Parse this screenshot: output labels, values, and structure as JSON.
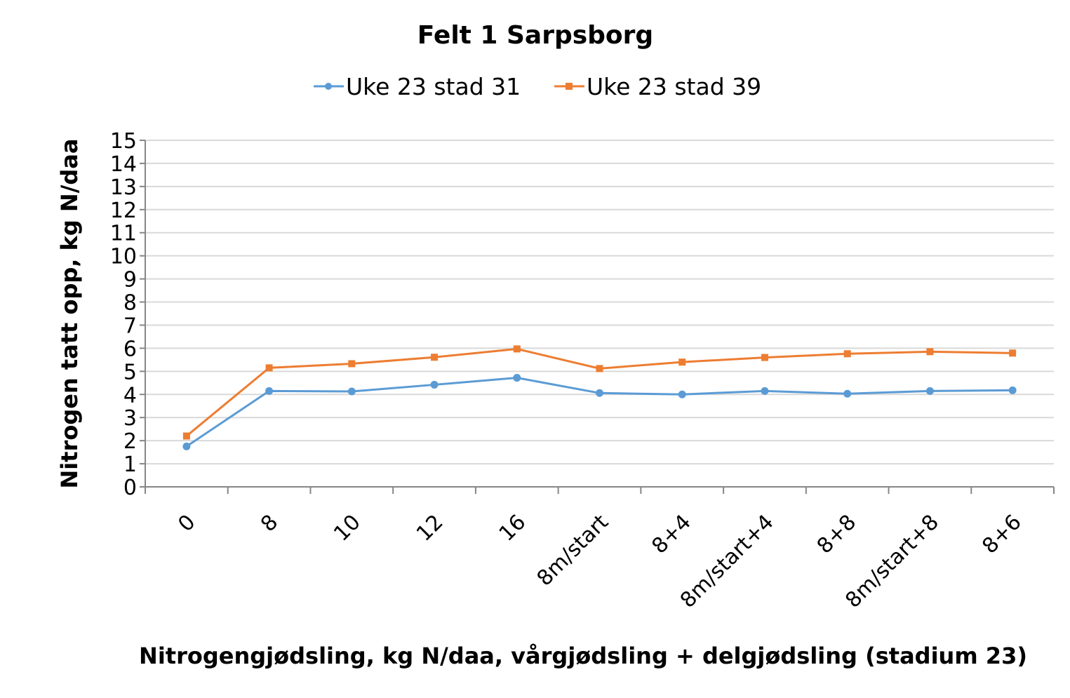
{
  "chart_data": {
    "type": "line",
    "title": "Felt 1 Sarpsborg",
    "xlabel": "Nitrogengjødsling, kg N/daa, vårgjødsling + delgjødsling (stadium 23)",
    "ylabel": "Nitrogen tatt opp, kg N/daa",
    "ylim": [
      0,
      15
    ],
    "yticks": [
      "0",
      "1",
      "2",
      "3",
      "4",
      "5",
      "6",
      "7",
      "8",
      "9",
      "10",
      "11",
      "12",
      "13",
      "14",
      "15"
    ],
    "grid": true,
    "legend_position": "top",
    "categories": [
      "0",
      "8",
      "10",
      "12",
      "16",
      "8m/start",
      "8+4",
      "8m/start+4",
      "8+8",
      "8m/start+8",
      "8+6"
    ],
    "series": [
      {
        "name": "Uke 23 stad 31",
        "color": "#5b9bd5",
        "marker": "circle",
        "values": [
          1.75,
          4.15,
          4.13,
          4.42,
          4.72,
          4.06,
          4.0,
          4.15,
          4.03,
          4.15,
          4.18
        ]
      },
      {
        "name": "Uke 23 stad 39",
        "color": "#ed7d31",
        "marker": "square",
        "values": [
          2.2,
          5.15,
          5.33,
          5.61,
          5.97,
          5.12,
          5.4,
          5.6,
          5.76,
          5.85,
          5.79
        ]
      }
    ]
  }
}
